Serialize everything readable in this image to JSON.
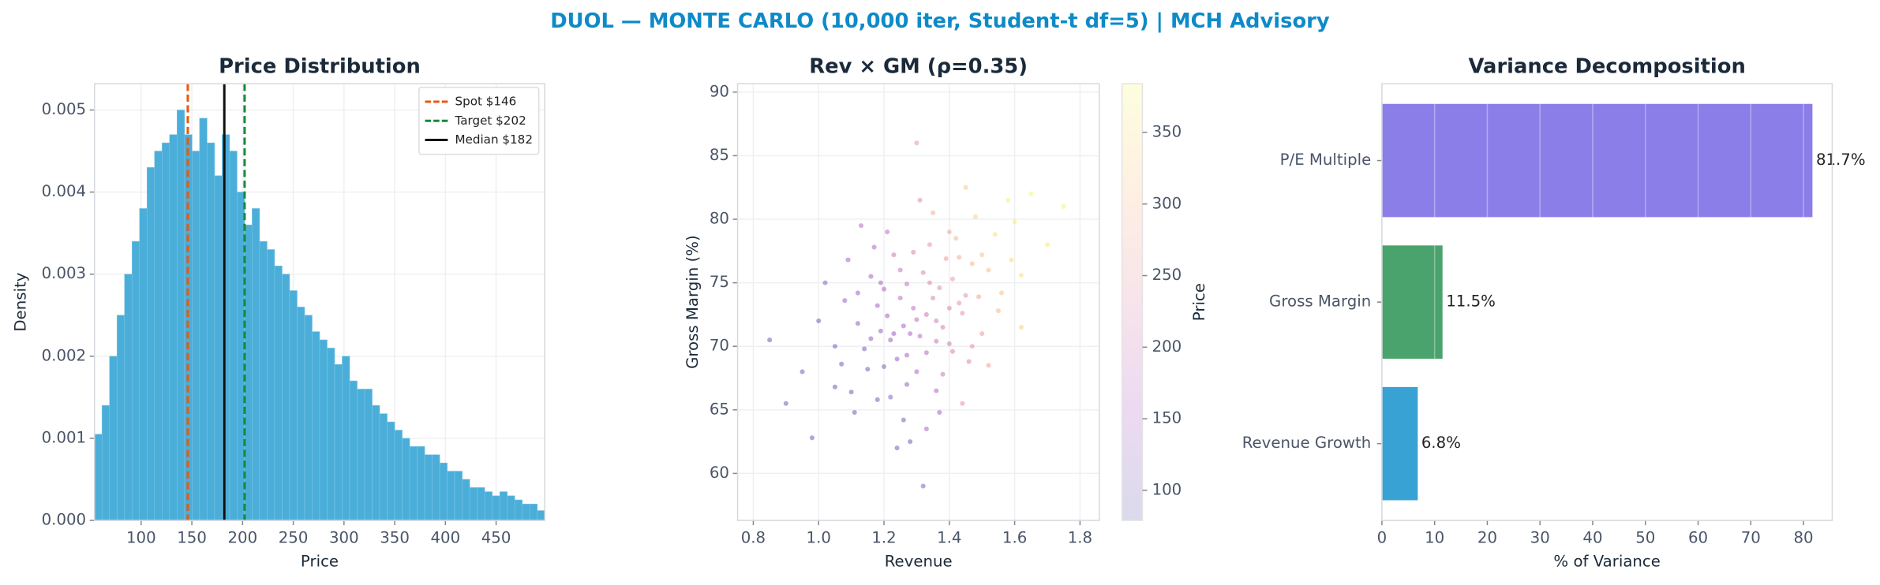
{
  "title": "DUOL — MONTE CARLO (10,000 iter, Student-t df=5) | MCH Advisory",
  "chart_data": [
    {
      "type": "histogram",
      "title": "Price Distribution",
      "xlabel": "Price",
      "ylabel": "Density",
      "color": "#4aaed9",
      "bins": [
        54,
        61.4,
        68.8,
        76.2,
        83.6,
        91,
        98.4,
        105.8,
        113.2,
        120.6,
        128,
        135.4,
        142.8,
        150.2,
        157.6,
        165,
        172.4,
        179.8,
        187.2,
        194.6,
        202,
        209.4,
        216.8,
        224.2,
        231.6,
        239,
        246.4,
        253.8,
        261.2,
        268.6,
        276,
        283.4,
        290.8,
        298.2,
        305.6,
        313,
        320.4,
        327.8,
        335.2,
        342.6,
        350,
        357.4,
        364.8,
        372.2,
        379.6,
        387,
        394.4,
        401.8,
        409.2,
        416.6,
        424,
        431.4,
        438.8,
        446.2,
        453.6,
        461,
        468.4,
        475.8,
        483.2,
        490.6,
        498
      ],
      "values": [
        0.00105,
        0.0014,
        0.002,
        0.0025,
        0.003,
        0.0034,
        0.0038,
        0.0043,
        0.0045,
        0.0046,
        0.0047,
        0.005,
        0.0047,
        0.0045,
        0.0049,
        0.0046,
        0.0042,
        0.0047,
        0.0045,
        0.004,
        0.0036,
        0.0038,
        0.0034,
        0.0033,
        0.0031,
        0.003,
        0.0028,
        0.0026,
        0.0025,
        0.0023,
        0.0022,
        0.0021,
        0.0019,
        0.002,
        0.0017,
        0.0016,
        0.0016,
        0.0014,
        0.0013,
        0.0012,
        0.0011,
        0.001,
        0.0009,
        0.0009,
        0.0008,
        0.0008,
        0.0007,
        0.0006,
        0.0006,
        0.0005,
        0.0004,
        0.0004,
        0.00035,
        0.0003,
        0.00035,
        0.0003,
        0.00025,
        0.0002,
        0.0002,
        0.00012
      ],
      "xlim": [
        54,
        498
      ],
      "xticks": [
        100,
        150,
        200,
        250,
        300,
        350,
        400,
        450
      ],
      "ylim": [
        0,
        0.00532
      ],
      "yticks": [
        {
          "value": 0,
          "label": "0.000"
        },
        {
          "value": 0.001,
          "label": "0.001"
        },
        {
          "value": 0.002,
          "label": "0.002"
        },
        {
          "value": 0.003,
          "label": "0.003"
        },
        {
          "value": 0.004,
          "label": "0.004"
        },
        {
          "value": 0.005,
          "label": "0.005"
        }
      ],
      "grid": true,
      "legend": "upper right",
      "vlines": [
        {
          "name": "Spot $146",
          "value": 146,
          "color": "#e8590c",
          "style": "dashed"
        },
        {
          "name": "Target $202",
          "value": 202,
          "color": "#148a3c",
          "style": "dashed"
        },
        {
          "name": "Median $182",
          "value": 182,
          "color": "#111111",
          "style": "solid"
        }
      ]
    },
    {
      "type": "scatter",
      "title": "Rev × GM (ρ=0.35)",
      "xlabel": "Revenue",
      "ylabel": "Gross Margin (%)",
      "colorbar_label": "Price",
      "colormap": "plasma",
      "x": [
        1.3,
        1.22,
        1.41,
        1.15,
        1.35,
        1.28,
        1.5,
        1.1,
        1.45,
        1.25,
        1.33,
        1.18,
        1.6,
        1.05,
        1.38,
        1.27,
        1.42,
        1.2,
        1.55,
        1.12,
        0.95,
        1.48,
        1.32,
        1.24,
        1.36,
        1.29,
        1.4,
        1.16,
        1.52,
        1.08,
        1.34,
        1.21,
        1.44,
        1.26,
        1.37,
        1.14,
        1.31,
        1.58,
        1.23,
        1.46,
        1.02,
        1.39,
        1.19,
        1.62,
        1.28,
        1.43,
        1.11,
        1.35,
        1.3,
        1.5,
        0.9,
        1.47,
        1.25,
        1.33,
        1.17,
        1.41,
        1.07,
        1.54,
        1.26,
        1.37,
        1.22,
        1.65,
        1.32,
        1.13,
        1.45,
        1.27,
        1.0,
        1.4,
        1.2,
        1.56,
        1.29,
        1.36,
        1.09,
        1.49,
        1.24,
        1.38,
        1.16,
        1.7,
        1.31,
        1.43,
        0.85,
        1.52,
        1.34,
        1.18,
        1.27,
        1.59,
        1.21,
        1.44,
        1.12,
        1.36,
        1.75,
        1.3,
        0.98,
        1.47,
        1.23,
        1.4,
        1.05,
        1.62,
        1.33,
        1.19
      ],
      "y": [
        72.1,
        70.5,
        75.3,
        68.2,
        73.8,
        71.0,
        77.2,
        66.4,
        74.0,
        76.0,
        69.5,
        73.2,
        79.8,
        70.0,
        71.5,
        67.0,
        78.5,
        74.5,
        72.8,
        71.8,
        68.0,
        80.2,
        75.8,
        69.0,
        66.5,
        73.0,
        70.2,
        75.5,
        76.0,
        73.6,
        78.0,
        72.4,
        72.6,
        64.2,
        74.6,
        69.8,
        70.8,
        81.5,
        77.2,
        68.8,
        75.0,
        76.9,
        71.2,
        75.6,
        62.5,
        73.4,
        64.8,
        80.5,
        68.0,
        71.0,
        65.5,
        76.5,
        73.8,
        72.5,
        77.8,
        69.6,
        68.6,
        78.8,
        71.6,
        64.8,
        66.0,
        82.0,
        59.0,
        79.5,
        82.5,
        74.9,
        72.0,
        73.0,
        68.4,
        74.2,
        77.4,
        70.4,
        76.8,
        73.9,
        62.0,
        67.8,
        70.6,
        78.0,
        81.5,
        77.0,
        70.5,
        68.5,
        75.0,
        65.8,
        69.3,
        76.8,
        79.0,
        65.5,
        74.2,
        72.0,
        81.0,
        86.0,
        62.8,
        70.0,
        71.0,
        79.0,
        66.8,
        71.5,
        63.5,
        75.0
      ],
      "c": [
        181,
        131,
        260,
        85,
        219,
        162,
        317,
        88,
        248,
        193,
        171,
        150,
        370,
        92,
        211,
        124,
        297,
        163,
        297,
        121,
        85,
        337,
        223,
        136,
        158,
        185,
        209,
        148,
        315,
        130,
        252,
        145,
        249,
        95,
        236,
        100,
        174,
        371,
        196,
        224,
        118,
        263,
        128,
        356,
        82,
        247,
        80,
        281,
        160,
        261,
        80,
        298,
        174,
        199,
        165,
        220,
        86,
        349,
        158,
        150,
        116,
        380,
        105,
        170,
        320,
        192,
        88,
        225,
        113,
        312,
        222,
        192,
        146,
        271,
        90,
        199,
        120,
        365,
        231,
        283,
        80,
        265,
        225,
        90,
        151,
        347,
        175,
        238,
        140,
        206,
        375,
        255,
        80,
        245,
        135,
        282,
        80,
        330,
        158,
        155
      ],
      "xlim": [
        0.752,
        1.859
      ],
      "xticks": [
        0.8,
        {
          "value": 1,
          "label": "1.0"
        },
        1.2,
        1.4,
        1.6,
        1.8
      ],
      "ylim": [
        56.3,
        90.66
      ],
      "yticks": [
        60,
        65,
        70,
        75,
        80,
        85,
        90
      ],
      "clim": [
        79,
        384
      ],
      "cticks": [
        100,
        150,
        200,
        250,
        300,
        350
      ],
      "grid": true
    },
    {
      "type": "barh",
      "title": "Variance Decomposition",
      "xlabel": "% of Variance",
      "categories": [
        "P/E Multiple",
        "Gross Margin",
        "Revenue Growth"
      ],
      "values": [
        81.7,
        11.5,
        6.8
      ],
      "value_labels": [
        "81.7%",
        "11.5%",
        "6.8%"
      ],
      "colors": [
        "#8b7ee8",
        "#4aa36c",
        "#38a2d4"
      ],
      "xlim": [
        0,
        85.45
      ],
      "xticks": [
        0,
        10,
        20,
        30,
        40,
        50,
        60,
        70,
        80
      ],
      "grid": true
    }
  ]
}
